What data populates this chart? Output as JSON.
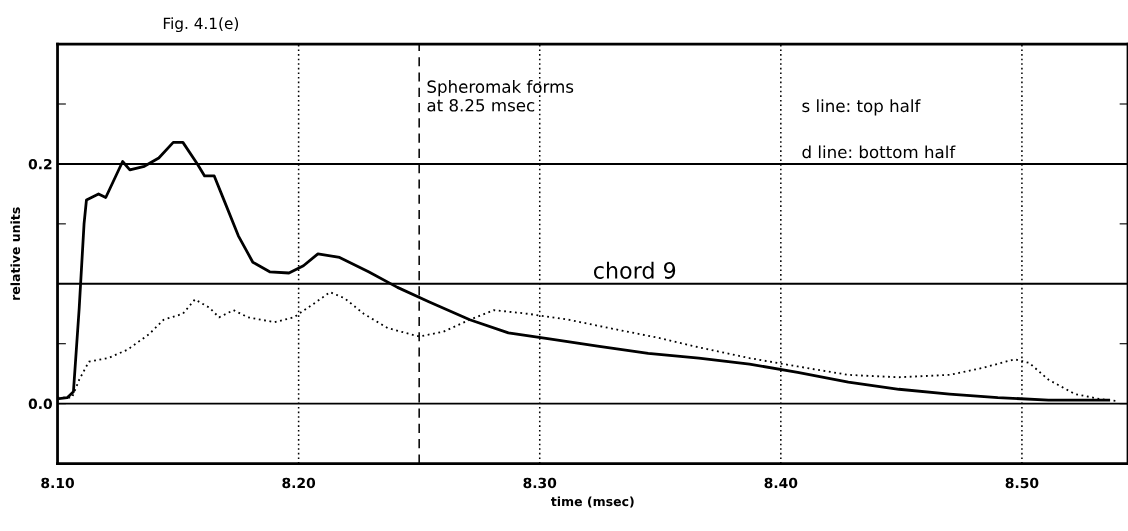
{
  "chart_data": {
    "type": "line",
    "title": "Fig. 4.1(e)",
    "xlabel": "time (msec)",
    "ylabel": "relative units",
    "series": [
      {
        "color": "#000000",
        "line_style": "solid",
        "x": [
          8.1,
          8.104,
          8.1066,
          8.109,
          8.111,
          8.112,
          8.117,
          8.12,
          8.127,
          8.13,
          8.136,
          8.142,
          8.148,
          8.152,
          8.158,
          8.161,
          8.165,
          8.169,
          8.175,
          8.181,
          8.188,
          8.196,
          8.202,
          8.208,
          8.217,
          8.229,
          8.241,
          8.254,
          8.271,
          8.287,
          8.304,
          8.324,
          8.345,
          8.366,
          8.387,
          8.407,
          8.428,
          8.449,
          8.47,
          8.49,
          8.511,
          8.536
        ],
        "values": [
          0.004,
          0.005,
          0.01,
          0.08,
          0.15,
          0.17,
          0.175,
          0.172,
          0.202,
          0.195,
          0.198,
          0.205,
          0.218,
          0.218,
          0.2,
          0.19,
          0.19,
          0.17,
          0.14,
          0.118,
          0.11,
          0.109,
          0.115,
          0.125,
          0.122,
          0.11,
          0.097,
          0.085,
          0.07,
          0.059,
          0.054,
          0.048,
          0.042,
          0.038,
          0.033,
          0.026,
          0.018,
          0.012,
          0.008,
          0.005,
          0.003,
          0.003
        ]
      },
      {
        "color": "#000000",
        "line_style": "dotted",
        "x": [
          8.1,
          8.106,
          8.109,
          8.113,
          8.121,
          8.129,
          8.138,
          8.144,
          8.152,
          8.157,
          8.163,
          8.167,
          8.173,
          8.179,
          8.19,
          8.198,
          8.206,
          8.213,
          8.219,
          8.227,
          8.237,
          8.25,
          8.26,
          8.271,
          8.281,
          8.295,
          8.312,
          8.329,
          8.349,
          8.366,
          8.387,
          8.407,
          8.428,
          8.449,
          8.47,
          8.484,
          8.497,
          8.503,
          8.511,
          8.522,
          8.532,
          8.54
        ],
        "values": [
          0.005,
          0.005,
          0.02,
          0.035,
          0.038,
          0.045,
          0.058,
          0.07,
          0.075,
          0.087,
          0.08,
          0.072,
          0.078,
          0.072,
          0.068,
          0.072,
          0.083,
          0.093,
          0.088,
          0.075,
          0.063,
          0.056,
          0.06,
          0.07,
          0.078,
          0.075,
          0.07,
          0.063,
          0.055,
          0.047,
          0.038,
          0.031,
          0.024,
          0.022,
          0.024,
          0.03,
          0.037,
          0.034,
          0.02,
          0.008,
          0.004,
          0.002
        ]
      }
    ],
    "xlim": [
      8.1,
      8.544
    ],
    "ylim": [
      -0.05,
      0.3
    ],
    "xticks": [
      {
        "value": 8.1,
        "label": "8.10"
      },
      {
        "value": 8.2,
        "label": "8.20"
      },
      {
        "value": 8.3,
        "label": "8.30"
      },
      {
        "value": 8.4,
        "label": "8.40"
      },
      {
        "value": 8.5,
        "label": "8.50"
      }
    ],
    "yticks": [
      {
        "value": 0.0,
        "label": "0.0"
      },
      {
        "value": 0.05,
        "label": null
      },
      {
        "value": 0.15,
        "label": null
      },
      {
        "value": 0.2,
        "label": "0.2"
      },
      {
        "value": 0.25,
        "label": null
      }
    ],
    "ref_lines": [
      {
        "axis": "y",
        "value": 0.0,
        "color": "#000000",
        "line_style": "solid"
      },
      {
        "axis": "y",
        "value": 0.1,
        "color": "#000000",
        "line_style": "solid"
      },
      {
        "axis": "y",
        "value": 0.2,
        "color": "#000000",
        "line_style": "solid"
      },
      {
        "axis": "x",
        "value": 8.2,
        "color": "#000000",
        "line_style": "dotted"
      },
      {
        "axis": "x",
        "value": 8.3,
        "color": "#000000",
        "line_style": "dotted"
      },
      {
        "axis": "x",
        "value": 8.4,
        "color": "#000000",
        "line_style": "dotted"
      },
      {
        "axis": "x",
        "value": 8.5,
        "color": "#000000",
        "line_style": "dotted"
      },
      {
        "axis": "x",
        "value": 8.25,
        "color": "#000000",
        "line_style": "dashed",
        "label": "Spheromak forms\nat 8.25 msec"
      }
    ],
    "annotations": [
      "s line: top half",
      "d line: bottom half",
      "chord 9"
    ],
    "grid": false,
    "legend": false
  }
}
